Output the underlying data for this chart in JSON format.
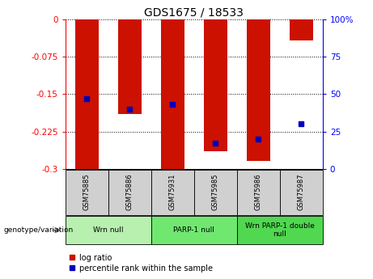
{
  "title": "GDS1675 / 18533",
  "samples": [
    "GSM75885",
    "GSM75886",
    "GSM75931",
    "GSM75985",
    "GSM75986",
    "GSM75987"
  ],
  "log_ratios": [
    -0.3,
    -0.19,
    -0.3,
    -0.265,
    -0.285,
    -0.042
  ],
  "percentile_ranks": [
    47,
    40,
    43,
    17,
    20,
    30
  ],
  "groups": [
    {
      "label": "Wrn null",
      "start": 0,
      "end": 1,
      "color": "#b8f0b0"
    },
    {
      "label": "PARP-1 null",
      "start": 2,
      "end": 3,
      "color": "#70e870"
    },
    {
      "label": "Wrn PARP-1 double\nnull",
      "start": 4,
      "end": 5,
      "color": "#50d850"
    }
  ],
  "ylim_left": [
    -0.3,
    0.0
  ],
  "ylim_right": [
    0,
    100
  ],
  "yticks_left": [
    0,
    -0.075,
    -0.15,
    -0.225,
    -0.3
  ],
  "yticks_right": [
    0,
    25,
    50,
    75,
    100
  ],
  "bar_color": "#cc1100",
  "dot_color": "#0000bb",
  "label_bg_color": "#d0d0d0",
  "genotype_label": "genotype/variation",
  "legend_log_ratio": "log ratio",
  "legend_pct": "percentile rank within the sample"
}
